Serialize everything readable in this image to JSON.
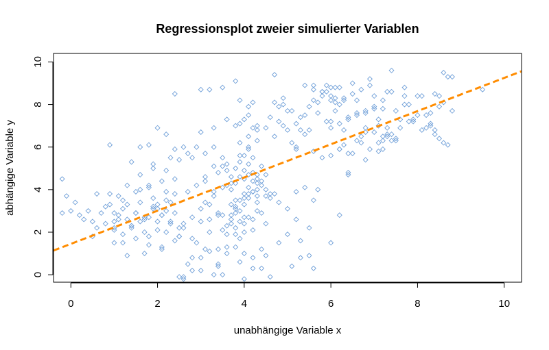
{
  "chart_data": {
    "type": "scatter",
    "title": "Regressionsplot zweier simulierter Variablen",
    "xlabel": "unabhängige Variable x",
    "ylabel": "abhängige Variable y",
    "xlim": [
      -0.4,
      10.4
    ],
    "ylim": [
      -0.35,
      10.4
    ],
    "xticks": [
      0,
      2,
      4,
      6,
      8,
      10
    ],
    "yticks": [
      0,
      2,
      4,
      6,
      8,
      10
    ],
    "point_color": "#6f9fd8",
    "regression_color": "#ff8c00",
    "regression_line": {
      "intercept": 1.45,
      "slope": 0.78
    },
    "series": [
      {
        "marker": "open-diamond",
        "x": [
          -0.2,
          -0.1,
          0.1,
          0.2,
          0.3,
          0.4,
          0.5,
          0.6,
          0.7,
          0.8,
          0.9,
          1.0,
          0.6,
          0.8,
          1.1,
          0.5,
          1.0,
          -0.2,
          0.0,
          0.9,
          1.0,
          1.1,
          1.2,
          1.3,
          1.4,
          1.5,
          1.6,
          1.7,
          1.8,
          1.9,
          2.0,
          2.1,
          2.2,
          2.3,
          2.4,
          2.5,
          1.2,
          1.4,
          1.6,
          1.8,
          2.0,
          2.2,
          2.4,
          1.1,
          1.3,
          1.5,
          1.7,
          1.9,
          2.1,
          2.3,
          1.2,
          1.5,
          1.8,
          2.1,
          2.4,
          1.3,
          1.6,
          1.9,
          2.2,
          1.4,
          1.7,
          2.0,
          2.3,
          1.0,
          1.2,
          1.5,
          1.8,
          2.0,
          2.2,
          2.5,
          1.3,
          1.7,
          2.1,
          1.4,
          1.9,
          2.4,
          1.6,
          2.0,
          1.8,
          2.3,
          2.6,
          2.8,
          3.0,
          3.2,
          3.4,
          3.1,
          2.7,
          2.9,
          3.3,
          3.5,
          2.6,
          3.0,
          3.4,
          2.8,
          3.2,
          3.6,
          2.5,
          2.9,
          3.1,
          3.5,
          2.7,
          3.3,
          2.6,
          3.0,
          3.4,
          2.8,
          3.2,
          3.6,
          3.5,
          2.9,
          3.1,
          2.4,
          2.2,
          3.0,
          2.5,
          2.6,
          2.8,
          3.0,
          3.3,
          3.1,
          3.7,
          3.8,
          3.9,
          4.0,
          4.1,
          4.2,
          4.3,
          4.4,
          4.5,
          3.9,
          4.0,
          4.1,
          4.2,
          4.3,
          3.8,
          3.9,
          4.0,
          4.1,
          4.2,
          4.4,
          3.8,
          3.9,
          4.0,
          4.1,
          4.2,
          4.3,
          3.7,
          3.9,
          4.1,
          4.3,
          3.8,
          4.0,
          4.2,
          4.4,
          3.9,
          4.1,
          4.3,
          3.8,
          4.0,
          4.2,
          4.1,
          3.9,
          4.0,
          4.2,
          4.3,
          4.1,
          3.6,
          3.7,
          4.4,
          4.5,
          3.8,
          4.0,
          4.2,
          4.4,
          3.6,
          3.9,
          4.1,
          4.3,
          4.5,
          3.7,
          4.0,
          4.2,
          3.8,
          4.1,
          4.3,
          4.0,
          3.9,
          4.2,
          4.1,
          4.0,
          3.8,
          4.3,
          4.6,
          4.7,
          4.8,
          4.9,
          5.0,
          4.6,
          4.8,
          5.0,
          4.7,
          4.9,
          5.1,
          5.2,
          4.6,
          4.8,
          5.0,
          5.2,
          5.4,
          4.7,
          4.9,
          5.1,
          5.3,
          5.5,
          5.0,
          5.3,
          5.6,
          5.2,
          5.4,
          5.7,
          3.5,
          3.6,
          3.4,
          3.7,
          3.3,
          3.8,
          3.2,
          3.5,
          3.9,
          3.6,
          3.4,
          3.7,
          3.5,
          3.8,
          3.3,
          3.6,
          4.4,
          4.6,
          4.5,
          4.7,
          4.3,
          4.5,
          5.2,
          5.4,
          5.6,
          5.8,
          6.0,
          5.3,
          5.5,
          5.7,
          5.9,
          6.1,
          5.4,
          5.6,
          5.8,
          6.0,
          6.2,
          5.5,
          5.7,
          5.9,
          6.1,
          6.3,
          5.2,
          5.6,
          6.0,
          5.8,
          6.2,
          6.4,
          6.6,
          6.8,
          6.0,
          6.2,
          6.4,
          6.6,
          6.8,
          7.0,
          6.1,
          6.3,
          6.5,
          6.7,
          6.9,
          7.1,
          6.0,
          6.4,
          6.8,
          7.2,
          6.2,
          6.6,
          7.0,
          7.4,
          6.1,
          6.5,
          6.9,
          7.3,
          6.3,
          6.7,
          7.1,
          6.4,
          6.8,
          7.2,
          7.0,
          7.2,
          7.4,
          7.6,
          7.8,
          8.0,
          7.1,
          7.3,
          7.5,
          7.7,
          7.9,
          7.2,
          7.4,
          7.6,
          7.8,
          8.0,
          7.3,
          7.5,
          7.7,
          7.9,
          8.1,
          8.2,
          8.3,
          8.4,
          8.5,
          8.6,
          8.7,
          8.8,
          8.3,
          8.5,
          8.7,
          8.2,
          8.4,
          8.6,
          8.8,
          8.3,
          8.5,
          7.4,
          8.6,
          9.5,
          6.5,
          6.7,
          6.9,
          7.1,
          7.3,
          6.6,
          6.8,
          7.0,
          7.2,
          6.4,
          6.2,
          6.0,
          5.8,
          5.6,
          5.9,
          6.3,
          7.5,
          7.7,
          8.1,
          8.4,
          2.6,
          2.5,
          2.7,
          3.0,
          3.4,
          3.3,
          2.8,
          3.9,
          4.0,
          4.2,
          5.3,
          5.5,
          5.1,
          5.6,
          6.2,
          6.0,
          3.6,
          3.7,
          3.2,
          3.5,
          1.6,
          1.9,
          2.1,
          2.4,
          0.9,
          1.0,
          4.8,
          4.5,
          1.8,
          2.2,
          3.1,
          3.8
        ],
        "y": [
          4.5,
          3.7,
          3.4,
          2.8,
          2.6,
          3.0,
          2.5,
          2.2,
          2.9,
          2.4,
          3.3,
          2.1,
          3.8,
          3.2,
          2.6,
          1.8,
          1.5,
          2.9,
          3.0,
          6.1,
          2.5,
          2.8,
          3.1,
          2.6,
          2.3,
          2.9,
          3.4,
          2.0,
          2.7,
          3.2,
          2.5,
          2.8,
          3.0,
          2.4,
          2.9,
          2.2,
          1.9,
          2.2,
          2.5,
          1.8,
          2.1,
          3.5,
          3.8,
          3.7,
          3.3,
          2.9,
          2.6,
          3.1,
          2.8,
          2.5,
          1.5,
          1.7,
          1.4,
          1.2,
          1.6,
          4.2,
          4.0,
          3.6,
          3.9,
          2.3,
          2.7,
          3.1,
          3.4,
          2.9,
          3.5,
          3.9,
          4.1,
          3.3,
          2.0,
          1.8,
          0.9,
          1.0,
          1.3,
          5.3,
          5.0,
          4.5,
          6.0,
          6.9,
          6.1,
          5.5,
          2.4,
          2.7,
          3.1,
          2.6,
          2.9,
          3.4,
          3.9,
          4.2,
          3.7,
          4.1,
          2.2,
          2.5,
          2.8,
          1.7,
          2.0,
          2.3,
          5.4,
          6.0,
          4.6,
          5.1,
          5.7,
          6.0,
          -0.1,
          0.2,
          0.4,
          0.8,
          1.1,
          1.3,
          0.0,
          1.5,
          1.2,
          8.5,
          6.6,
          6.7,
          1.8,
          6.0,
          5.5,
          8.7,
          5.1,
          4.4,
          4.0,
          4.3,
          4.6,
          4.9,
          5.2,
          4.8,
          4.5,
          4.2,
          4.0,
          3.5,
          3.8,
          4.1,
          4.4,
          4.7,
          5.0,
          5.3,
          5.6,
          5.9,
          5.5,
          5.1,
          3.2,
          3.0,
          3.3,
          3.6,
          3.9,
          3.4,
          2.8,
          2.5,
          2.7,
          3.0,
          2.2,
          2.4,
          2.6,
          2.9,
          6.2,
          6.5,
          6.8,
          1.9,
          2.0,
          2.1,
          6.0,
          7.1,
          7.3,
          6.9,
          7.0,
          7.5,
          4.2,
          4.6,
          4.4,
          4.7,
          1.3,
          1.0,
          0.8,
          1.2,
          4.9,
          5.6,
          4.7,
          4.3,
          3.7,
          3.3,
          3.6,
          3.9,
          3.5,
          3.8,
          4.0,
          2.7,
          8.2,
          8.1,
          7.9,
          4.5,
          2.9,
          3.7,
          3.6,
          3.8,
          7.9,
          8.0,
          7.7,
          7.4,
          7.2,
          6.8,
          6.5,
          7.0,
          6.2,
          5.9,
          3.8,
          3.4,
          3.1,
          2.6,
          7.5,
          8.1,
          8.3,
          7.7,
          6.8,
          2.2,
          1.9,
          1.6,
          3.5,
          3.9,
          4.1,
          4.0,
          5.5,
          5.2,
          4.8,
          4.3,
          3.9,
          3.1,
          3.3,
          2.1,
          1.7,
          1.0,
          0.5,
          2.4,
          2.8,
          7.0,
          6.9,
          7.3,
          0.3,
          -0.1,
          0.9,
          9.4,
          6.3,
          6.9,
          7.1,
          6.6,
          8.2,
          8.6,
          8.4,
          7.4,
          7.9,
          8.1,
          8.6,
          8.3,
          8.9,
          8.7,
          8.4,
          8.2,
          8.8,
          6.8,
          7.6,
          7.2,
          7.7,
          6.1,
          6.0,
          5.8,
          5.6,
          5.5,
          5.9,
          5.7,
          6.3,
          6.7,
          6.9,
          7.1,
          7.3,
          7.5,
          7.7,
          7.9,
          8.1,
          8.3,
          8.5,
          8.7,
          8.9,
          7.0,
          7.2,
          7.4,
          7.6,
          7.8,
          8.0,
          8.2,
          8.4,
          8.6,
          8.8,
          9.0,
          9.2,
          6.5,
          6.8,
          6.2,
          5.8,
          4.7,
          5.4,
          5.9,
          6.7,
          6.5,
          6.3,
          6.9,
          7.2,
          7.5,
          6.2,
          8.6,
          7.7,
          8.4,
          7.3,
          6.3,
          6.6,
          7.3,
          8.0,
          8.4,
          6.9,
          6.3,
          8.0,
          7.2,
          8.4,
          7.5,
          7.1,
          6.8,
          7.9,
          6.2,
          9.3,
          7.7,
          7.0,
          8.4,
          6.1,
          6.9,
          6.6,
          8.1,
          9.3,
          7.6,
          6.4,
          9.6,
          9.5,
          8.7,
          5.7,
          6.5,
          5.9,
          7.3,
          6.6,
          7.6,
          6.9,
          7.8,
          8.2,
          4.8,
          5.9,
          8.8,
          8.6,
          8.9,
          8.9,
          8.2,
          6.4,
          8.8,
          6.8,
          8.5,
          -0.2,
          -0.1,
          0.5,
          0.8,
          1.2,
          0.0,
          0.2,
          0.6,
          -0.2,
          0.3,
          0.8,
          0.9,
          0.4,
          0.3,
          2.8,
          1.5,
          1.9,
          2.6,
          8.7,
          8.8,
          4.7,
          5.2,
          4.4,
          5.9,
          3.8,
          2.2,
          1.5,
          2.4,
          4.2,
          4.9,
          5.7,
          9.1
        ]
      }
    ]
  }
}
